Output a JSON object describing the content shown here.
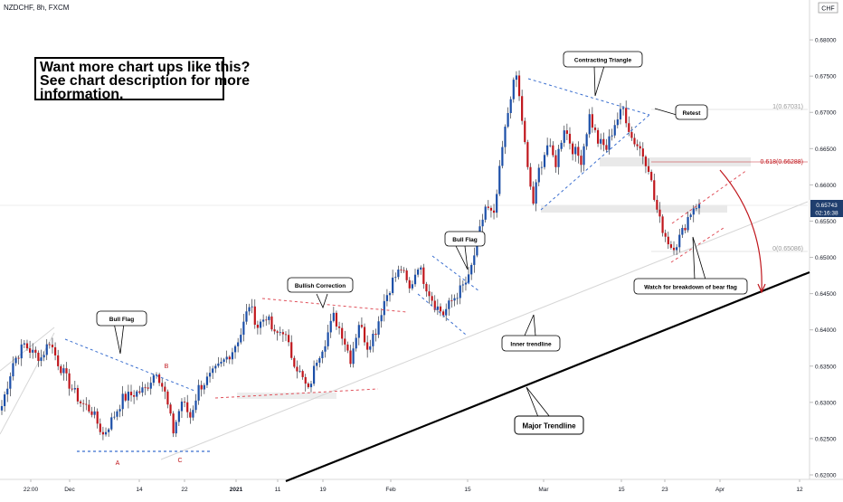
{
  "header": {
    "symbol_line": "NZDCHF, 8h, FXCM"
  },
  "currency_badge": "CHF",
  "promo": {
    "lines": [
      "Want more chart ups like this?",
      "See chart description for more",
      "information."
    ]
  },
  "price_tag": {
    "price": "0.65743",
    "countdown": "02:16:38"
  },
  "fib_labels": {
    "top": "1(0.67031)",
    "mid": "0.618(0.66288)",
    "bottom": "0(0.65086)"
  },
  "annotations": {
    "bull_flag_1": "Bull Flag",
    "bullish_correction": "Bullish Correction",
    "bull_flag_2": "Bull Flag",
    "contracting_triangle": "Contracting Triangle",
    "retest": "Retest",
    "watch": "Watch for breakdown of bear flag",
    "inner_trendline": "Inner trendline",
    "major_trendline": "Major Trendline"
  },
  "point_labels": {
    "a": "A",
    "b": "B",
    "c": "C"
  },
  "colors": {
    "up": "#1c4fa8",
    "down": "#c0161c",
    "blue_dash": "#3b6fcf",
    "red_dash": "#e0505a",
    "fib_red": "#c0161c"
  },
  "chart_data": {
    "type": "candlestick",
    "title": "NZDCHF, 8h, FXCM",
    "y_ticks": [
      "0.68000",
      "0.67500",
      "0.67000",
      "0.66500",
      "0.66000",
      "0.65500",
      "0.65000",
      "0.64500",
      "0.64000",
      "0.63500",
      "0.63000",
      "0.62500",
      "0.62000"
    ],
    "x_ticks": [
      "22:00",
      "Dec",
      "14",
      "22",
      "2021",
      "11",
      "19",
      "Feb",
      "15",
      "Mar",
      "15",
      "23",
      "Apr",
      "12"
    ],
    "ylim": [
      0.6195,
      0.6855
    ],
    "anchors": [
      [
        0,
        0.6295
      ],
      [
        4,
        0.6355
      ],
      [
        8,
        0.638
      ],
      [
        11,
        0.6368
      ],
      [
        14,
        0.6362
      ],
      [
        17,
        0.6385
      ],
      [
        20,
        0.6355
      ],
      [
        24,
        0.6325
      ],
      [
        28,
        0.63
      ],
      [
        32,
        0.6288
      ],
      [
        36,
        0.6255
      ],
      [
        39,
        0.6275
      ],
      [
        43,
        0.6305
      ],
      [
        47,
        0.6312
      ],
      [
        51,
        0.6318
      ],
      [
        55,
        0.6345
      ],
      [
        58,
        0.6312
      ],
      [
        61,
        0.626
      ],
      [
        64,
        0.6302
      ],
      [
        67,
        0.628
      ],
      [
        70,
        0.632
      ],
      [
        74,
        0.6335
      ],
      [
        78,
        0.6352
      ],
      [
        82,
        0.6372
      ],
      [
        85,
        0.6395
      ],
      [
        88,
        0.6435
      ],
      [
        91,
        0.6405
      ],
      [
        94,
        0.642
      ],
      [
        97,
        0.6392
      ],
      [
        100,
        0.64
      ],
      [
        103,
        0.6365
      ],
      [
        106,
        0.634
      ],
      [
        109,
        0.6315
      ],
      [
        112,
        0.636
      ],
      [
        115,
        0.6385
      ],
      [
        118,
        0.6418
      ],
      [
        121,
        0.6395
      ],
      [
        124,
        0.636
      ],
      [
        127,
        0.641
      ],
      [
        130,
        0.6378
      ],
      [
        133,
        0.64
      ],
      [
        136,
        0.644
      ],
      [
        139,
        0.6468
      ],
      [
        142,
        0.6485
      ],
      [
        145,
        0.6455
      ],
      [
        148,
        0.649
      ],
      [
        151,
        0.646
      ],
      [
        154,
        0.6435
      ],
      [
        157,
        0.6422
      ],
      [
        160,
        0.644
      ],
      [
        163,
        0.6455
      ],
      [
        166,
        0.647
      ],
      [
        169,
        0.652
      ],
      [
        172,
        0.657
      ],
      [
        175,
        0.6555
      ],
      [
        178,
        0.665
      ],
      [
        181,
        0.6725
      ],
      [
        183,
        0.675
      ],
      [
        185,
        0.669
      ],
      [
        187,
        0.662
      ],
      [
        189,
        0.6575
      ],
      [
        191,
        0.662
      ],
      [
        194,
        0.6655
      ],
      [
        197,
        0.663
      ],
      [
        200,
        0.668
      ],
      [
        203,
        0.665
      ],
      [
        206,
        0.6635
      ],
      [
        209,
        0.6695
      ],
      [
        212,
        0.666
      ],
      [
        215,
        0.665
      ],
      [
        218,
        0.6685
      ],
      [
        221,
        0.6705
      ],
      [
        224,
        0.6665
      ],
      [
        227,
        0.665
      ],
      [
        230,
        0.6625
      ],
      [
        232,
        0.658
      ],
      [
        234,
        0.655
      ],
      [
        236,
        0.653
      ],
      [
        238,
        0.6515
      ],
      [
        240,
        0.652
      ],
      [
        242,
        0.6535
      ],
      [
        244,
        0.6555
      ],
      [
        246,
        0.657
      ],
      [
        248,
        0.6574
      ]
    ]
  }
}
